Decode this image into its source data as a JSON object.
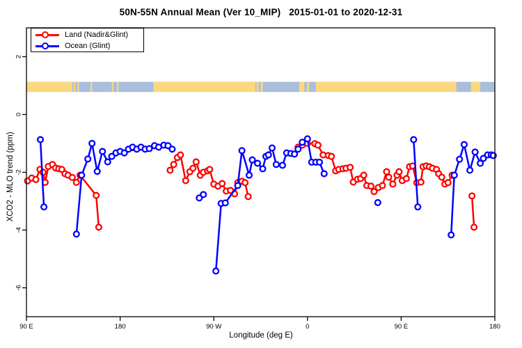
{
  "chart_data": {
    "type": "line",
    "title": "50N-55N Annual Mean (Ver 10_MIP)   2015-01-01 to 2020-12-31",
    "xlabel": "Longitude (deg E)",
    "ylabel": "XCO2 - MLO trend (ppm)",
    "xlim": [
      90,
      540
    ],
    "ylim": [
      -7,
      3
    ],
    "grid": false,
    "legend_position": "top-left",
    "x_ticks": [
      {
        "value": 90,
        "label": "90 E"
      },
      {
        "value": 180,
        "label": "180"
      },
      {
        "value": 270,
        "label": "90 W"
      },
      {
        "value": 360,
        "label": "0"
      },
      {
        "value": 450,
        "label": "90 E"
      },
      {
        "value": 540,
        "label": "180"
      }
    ],
    "y_ticks": [
      {
        "value": 2,
        "label": "2"
      },
      {
        "value": 0,
        "label": "0"
      },
      {
        "value": -2,
        "label": "-2"
      },
      {
        "value": -4,
        "label": "-4"
      },
      {
        "value": -6,
        "label": "-6"
      }
    ],
    "legend": [
      {
        "name": "Land (Nadir&Glint)",
        "color": "#ff0000"
      },
      {
        "name": "Ocean (Glint)",
        "color": "#0000ff"
      }
    ],
    "map_band": {
      "description": "world-map strip of the 50N-55N latitude band drawn across the plot",
      "y_range": [
        0.78,
        1.13
      ],
      "ocean_color": "#a9bedd",
      "land_color": "#fbd77f",
      "ocean_range": [
        90,
        540
      ],
      "land_segments": [
        [
          90,
          134
        ],
        [
          135.5,
          137
        ],
        [
          139,
          140.5
        ],
        [
          151.5,
          153
        ],
        [
          172,
          173.5
        ],
        [
          177,
          178.5
        ],
        [
          212,
          310
        ],
        [
          311,
          313
        ],
        [
          315,
          317
        ],
        [
          352,
          357
        ],
        [
          359.5,
          361.5
        ],
        [
          368,
          503
        ],
        [
          517,
          526
        ]
      ]
    },
    "series": [
      {
        "name": "Land (Nadir&Glint)",
        "color": "#ff0000",
        "marker": "open-circle",
        "segments": [
          [
            [
              91,
              -2.3
            ],
            [
              95,
              -2.2
            ],
            [
              99,
              -2.25
            ],
            [
              103,
              -1.9
            ],
            [
              106,
              -2.0
            ],
            [
              108,
              -2.35
            ],
            [
              111,
              -1.8
            ],
            [
              115,
              -1.73
            ],
            [
              118,
              -1.85
            ],
            [
              121,
              -1.88
            ],
            [
              124,
              -1.9
            ],
            [
              127,
              -2.05
            ],
            [
              130,
              -2.1
            ],
            [
              134,
              -2.18
            ],
            [
              138,
              -2.35
            ],
            [
              141.5,
              -2.1
            ],
            [
              157,
              -2.8
            ],
            [
              159.5,
              -3.9
            ]
          ],
          [
            [
              192,
              -1.15
            ]
          ],
          [
            [
              228,
              -1.93
            ],
            [
              231.5,
              -1.73
            ],
            [
              235,
              -1.49
            ],
            [
              238,
              -1.4
            ],
            [
              243,
              -2.29
            ],
            [
              247,
              -1.98
            ],
            [
              250,
              -1.86
            ],
            [
              253,
              -1.64
            ],
            [
              257,
              -2.1
            ],
            [
              260,
              -2.0
            ],
            [
              264,
              -1.95
            ],
            [
              266,
              -1.9
            ],
            [
              270,
              -2.41
            ],
            [
              274,
              -2.48
            ],
            [
              278,
              -2.39
            ],
            [
              282,
              -2.65
            ],
            [
              286,
              -2.63
            ],
            [
              290,
              -2.75
            ],
            [
              293,
              -2.36
            ],
            [
              297,
              -2.31
            ],
            [
              300,
              -2.36
            ],
            [
              303,
              -2.84
            ]
          ],
          [
            [
              351,
              -1.13
            ],
            [
              355,
              -1.06
            ],
            [
              360,
              -1.0
            ],
            [
              367,
              -1.01
            ],
            [
              370,
              -1.06
            ],
            [
              375,
              -1.4
            ],
            [
              380,
              -1.42
            ],
            [
              383,
              -1.45
            ],
            [
              387,
              -1.95
            ],
            [
              390,
              -1.9
            ],
            [
              394,
              -1.88
            ],
            [
              397,
              -1.86
            ],
            [
              401,
              -1.83
            ],
            [
              404,
              -2.34
            ],
            [
              408,
              -2.24
            ],
            [
              411,
              -2.22
            ],
            [
              414,
              -2.1
            ],
            [
              417,
              -2.46
            ],
            [
              421,
              -2.48
            ],
            [
              424,
              -2.67
            ],
            [
              428,
              -2.53
            ],
            [
              432,
              -2.46
            ],
            [
              436,
              -1.98
            ],
            [
              438,
              -2.17
            ],
            [
              442,
              -2.41
            ],
            [
              446,
              -2.1
            ],
            [
              448,
              -1.98
            ],
            [
              451,
              -2.29
            ],
            [
              455,
              -2.22
            ],
            [
              458,
              -1.81
            ],
            [
              461,
              -1.78
            ],
            [
              465,
              -2.36
            ],
            [
              469,
              -2.34
            ],
            [
              471,
              -1.81
            ],
            [
              474,
              -1.78
            ],
            [
              477,
              -1.81
            ],
            [
              480,
              -1.86
            ],
            [
              484,
              -1.9
            ],
            [
              486,
              -2.05
            ],
            [
              489,
              -2.17
            ],
            [
              492,
              -2.41
            ],
            [
              495,
              -2.36
            ],
            [
              499,
              -2.1
            ]
          ],
          [
            [
              518,
              -2.82
            ],
            [
              520,
              -3.9
            ]
          ]
        ]
      },
      {
        "name": "Ocean (Glint)",
        "color": "#0000ff",
        "marker": "open-circle",
        "segments": [
          [
            [
              103.4,
              -0.87
            ],
            [
              106.8,
              -3.2
            ]
          ],
          [
            [
              138,
              -4.14
            ],
            [
              143,
              -2.1
            ],
            [
              149,
              -1.54
            ],
            [
              153,
              -1.0
            ],
            [
              158,
              -1.97
            ],
            [
              163,
              -1.28
            ],
            [
              168,
              -1.64
            ],
            [
              172,
              -1.45
            ],
            [
              176,
              -1.33
            ],
            [
              180,
              -1.28
            ],
            [
              184,
              -1.33
            ],
            [
              188,
              -1.2
            ],
            [
              192,
              -1.13
            ],
            [
              196,
              -1.2
            ],
            [
              200,
              -1.13
            ],
            [
              204,
              -1.2
            ],
            [
              208,
              -1.18
            ],
            [
              213,
              -1.08
            ],
            [
              217,
              -1.13
            ],
            [
              222,
              -1.06
            ],
            [
              226,
              -1.08
            ],
            [
              230,
              -1.2
            ]
          ],
          [
            [
              256,
              -2.89
            ],
            [
              260,
              -2.77
            ]
          ],
          [
            [
              272,
              -5.42
            ],
            [
              277,
              -3.08
            ],
            [
              281,
              -3.06
            ],
            [
              293,
              -2.46
            ],
            [
              297,
              -1.25
            ],
            [
              304,
              -2.1
            ],
            [
              307,
              -1.57
            ],
            [
              312,
              -1.69
            ],
            [
              317,
              -1.88
            ],
            [
              320,
              -1.45
            ],
            [
              322.5,
              -1.4
            ],
            [
              326,
              -1.16
            ],
            [
              330,
              -1.73
            ],
            [
              336,
              -1.76
            ],
            [
              340,
              -1.33
            ],
            [
              344,
              -1.35
            ],
            [
              347.5,
              -1.37
            ],
            [
              351,
              -1.2
            ],
            [
              355,
              -0.96
            ],
            [
              360,
              -0.84
            ],
            [
              364,
              -1.65
            ],
            [
              368,
              -1.65
            ],
            [
              371.5,
              -1.65
            ],
            [
              376,
              -2.05
            ]
          ],
          [
            [
              427.5,
              -3.05
            ]
          ],
          [
            [
              462,
              -0.87
            ],
            [
              466,
              -3.2
            ]
          ],
          [
            [
              498,
              -4.17
            ],
            [
              501,
              -2.1
            ],
            [
              506,
              -1.55
            ],
            [
              510.5,
              -1.04
            ],
            [
              516,
              -1.93
            ],
            [
              521,
              -1.3
            ],
            [
              526,
              -1.69
            ],
            [
              529,
              -1.52
            ],
            [
              533,
              -1.4
            ],
            [
              536.5,
              -1.4
            ],
            [
              538.5,
              -1.42
            ]
          ]
        ]
      }
    ]
  }
}
